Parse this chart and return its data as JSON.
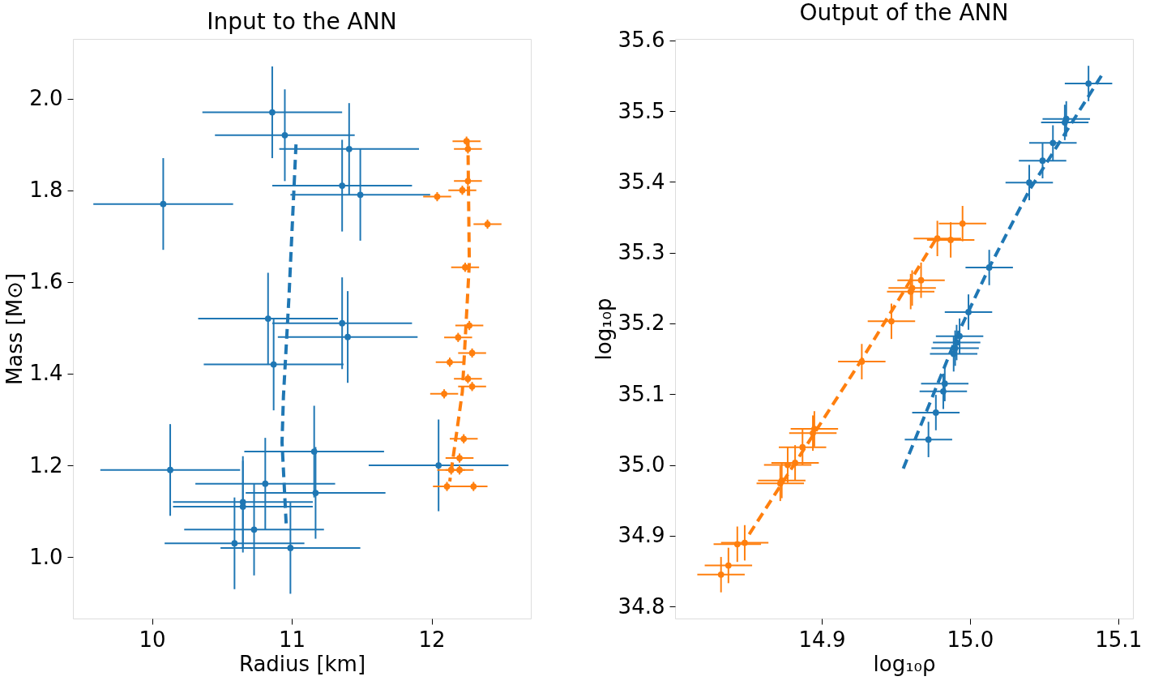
{
  "chart_data": [
    {
      "type": "scatter",
      "title": "Input to the ANN",
      "xlabel": "Radius [km]",
      "ylabel": "Mass [M⊙]",
      "marker": "circle",
      "grid": false,
      "xlim": [
        9.434,
        12.71
      ],
      "ylim": [
        0.866,
        2.13
      ],
      "xticks": [
        10,
        11,
        12
      ],
      "yticks": [
        {
          "value": 1.0,
          "label": "1.0"
        },
        1.2,
        1.4,
        1.6,
        1.8,
        {
          "value": 2.0,
          "label": "2.0"
        }
      ],
      "series": [
        {
          "color": "#1f77b4",
          "x": [
            10.08,
            10.86,
            10.95,
            11.41,
            11.36,
            11.49,
            10.83,
            11.36,
            11.4,
            10.87,
            10.13,
            11.16,
            10.81,
            10.65,
            10.65,
            11.17,
            10.73,
            10.59,
            10.99,
            12.05
          ],
          "values": [
            1.77,
            1.97,
            1.92,
            1.89,
            1.81,
            1.79,
            1.52,
            1.51,
            1.48,
            1.42,
            1.19,
            1.23,
            1.16,
            1.12,
            1.11,
            1.14,
            1.06,
            1.03,
            1.02,
            1.2
          ],
          "errors": [
            0.1,
            0.1,
            0.1,
            0.1,
            0.1,
            0.1,
            0.1,
            0.1,
            0.1,
            0.1,
            0.1,
            0.1,
            0.1,
            0.1,
            0.1,
            0.1,
            0.1,
            0.1,
            0.1,
            0.1
          ],
          "xerrors": [
            0.5,
            0.5,
            0.5,
            0.5,
            0.5,
            0.5,
            0.5,
            0.5,
            0.5,
            0.5,
            0.5,
            0.5,
            0.5,
            0.5,
            0.5,
            0.5,
            0.5,
            0.5,
            0.5,
            0.5
          ]
        },
        {
          "color": "#ff7f0e",
          "x": [
            12.25,
            12.26,
            12.26,
            12.22,
            12.04,
            12.4,
            12.24,
            12.27,
            12.19,
            12.29,
            12.13,
            12.26,
            12.29,
            12.09,
            12.23,
            12.2,
            12.14,
            12.2,
            12.11,
            12.3
          ],
          "values": [
            1.907,
            1.89,
            1.82,
            1.8,
            1.786,
            1.726,
            1.632,
            1.505,
            1.479,
            1.445,
            1.425,
            1.389,
            1.372,
            1.356,
            1.258,
            1.216,
            1.19,
            1.19,
            1.154,
            1.154
          ],
          "errors": [
            0.01,
            0.01,
            0.01,
            0.01,
            0.01,
            0.01,
            0.01,
            0.01,
            0.01,
            0.01,
            0.01,
            0.01,
            0.01,
            0.01,
            0.01,
            0.01,
            0.01,
            0.01,
            0.01,
            0.01
          ],
          "xerrors": [
            0.1,
            0.1,
            0.1,
            0.1,
            0.1,
            0.1,
            0.1,
            0.1,
            0.1,
            0.1,
            0.1,
            0.1,
            0.1,
            0.1,
            0.1,
            0.1,
            0.1,
            0.1,
            0.1,
            0.1
          ]
        },
        {
          "type": "line",
          "marker": "none",
          "line_style": "dashed",
          "color": "#1f77b4",
          "x": [
            11.03,
            10.98,
            10.94,
            10.93,
            10.96
          ],
          "values": [
            1.9,
            1.57,
            1.35,
            1.25,
            1.07
          ]
        },
        {
          "type": "line",
          "marker": "none",
          "line_style": "dashed",
          "color": "#ff7f0e",
          "x": [
            12.26,
            12.27,
            12.22,
            12.13
          ],
          "values": [
            1.91,
            1.64,
            1.36,
            1.165
          ]
        }
      ]
    },
    {
      "type": "scatter",
      "title": "Output of the ANN",
      "xlabel": "log₁₀ρ",
      "ylabel": "log₁₀p",
      "marker": "circle",
      "grid": false,
      "xlim": [
        14.801,
        15.11
      ],
      "ylim": [
        34.783,
        35.602
      ],
      "xticks": [
        14.9,
        {
          "value": 15.0,
          "label": "15.0"
        },
        15.1
      ],
      "yticks": [
        34.8,
        34.9,
        {
          "value": 35.0,
          "label": "35.0"
        },
        35.1,
        35.2,
        35.3,
        35.4,
        35.5,
        35.6
      ],
      "series": [
        {
          "color": "#1f77b4",
          "x": [
            14.972,
            14.977,
            14.982,
            14.983,
            14.989,
            14.99,
            14.991,
            14.993,
            14.999,
            15.013,
            15.04,
            15.049,
            15.056,
            15.064,
            15.065,
            15.08
          ],
          "values": [
            35.036,
            35.074,
            35.104,
            35.115,
            35.157,
            35.165,
            35.173,
            35.182,
            35.216,
            35.279,
            35.399,
            35.43,
            35.455,
            35.484,
            35.489,
            35.539
          ],
          "errors": [
            0.025,
            0.025,
            0.025,
            0.025,
            0.025,
            0.025,
            0.025,
            0.025,
            0.025,
            0.025,
            0.025,
            0.025,
            0.025,
            0.025,
            0.025,
            0.025
          ],
          "xerrors": [
            0.016,
            0.016,
            0.016,
            0.016,
            0.016,
            0.016,
            0.016,
            0.016,
            0.016,
            0.016,
            0.016,
            0.016,
            0.016,
            0.016,
            0.016,
            0.016
          ]
        },
        {
          "color": "#ff7f0e",
          "x": [
            14.832,
            14.837,
            14.843,
            14.848,
            14.872,
            14.873,
            14.877,
            14.882,
            14.887,
            14.894,
            14.895,
            14.927,
            14.947,
            14.96,
            14.961,
            14.967,
            14.978,
            14.987,
            14.995
          ],
          "values": [
            34.845,
            34.858,
            34.888,
            34.89,
            34.974,
            34.978,
            35.0,
            35.003,
            35.025,
            35.045,
            35.051,
            35.146,
            35.203,
            35.245,
            35.25,
            35.261,
            35.32,
            35.318,
            35.341
          ],
          "errors": [
            0.025,
            0.025,
            0.025,
            0.025,
            0.025,
            0.025,
            0.025,
            0.025,
            0.025,
            0.025,
            0.025,
            0.025,
            0.025,
            0.025,
            0.025,
            0.025,
            0.025,
            0.025,
            0.025
          ],
          "xerrors": [
            0.016,
            0.016,
            0.016,
            0.016,
            0.016,
            0.016,
            0.016,
            0.016,
            0.016,
            0.016,
            0.016,
            0.016,
            0.016,
            0.016,
            0.016,
            0.016,
            0.016,
            0.016,
            0.016
          ]
        },
        {
          "type": "line",
          "marker": "none",
          "line_style": "dashed",
          "color": "#1f77b4",
          "x": [
            14.955,
            14.992,
            15.013,
            15.04,
            15.089
          ],
          "values": [
            34.995,
            35.186,
            35.279,
            35.388,
            35.551
          ]
        },
        {
          "type": "line",
          "marker": "none",
          "line_style": "dashed",
          "color": "#ff7f0e",
          "x": [
            14.851,
            14.927,
            14.977
          ],
          "values": [
            34.902,
            35.149,
            35.319
          ]
        }
      ]
    }
  ]
}
